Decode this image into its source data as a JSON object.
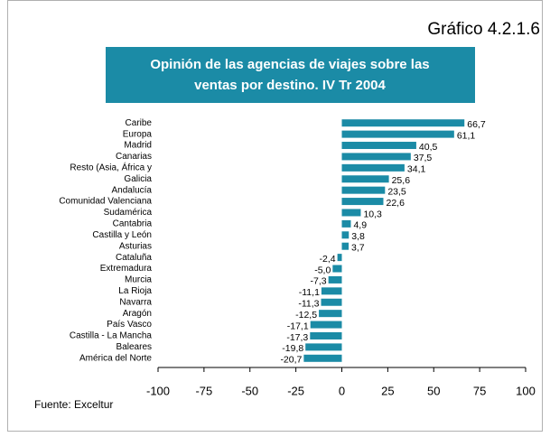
{
  "chart_data": {
    "type": "bar",
    "orientation": "horizontal",
    "figure_label": "Gráfico 4.2.1.6",
    "title": [
      "Opinión de las agencias de viajes sobre las",
      "ventas por destino.  IV Tr 2004"
    ],
    "source": "Fuente: Exceltur",
    "categories": [
      "Caribe",
      "Europa",
      "Madrid",
      "Canarias",
      "Resto (Asia, África y",
      "Galicia",
      "Andalucía",
      "Comunidad Valenciana",
      "Sudamérica",
      "Cantabria",
      "Castilla y León",
      "Asturias",
      "Cataluña",
      "Extremadura",
      "Murcia",
      "La Rioja",
      "Navarra",
      "Aragón",
      "País Vasco",
      "Castilla - La Mancha",
      "Baleares",
      "América del Norte"
    ],
    "values": [
      66.7,
      61.1,
      40.5,
      37.5,
      34.1,
      25.6,
      23.5,
      22.6,
      10.3,
      4.9,
      3.8,
      3.7,
      -2.4,
      -5.0,
      -7.3,
      -11.1,
      -11.3,
      -12.5,
      -17.1,
      -17.3,
      -19.8,
      -20.7
    ],
    "value_labels": [
      "66,7",
      "61,1",
      "40,5",
      "37,5",
      "34,1",
      "25,6",
      "23,5",
      "22,6",
      "10,3",
      "4,9",
      "3,8",
      "3,7",
      "-2,4",
      "-5,0",
      "-7,3",
      "-11,1",
      "-11,3",
      "-12,5",
      "-17,1",
      "-17,3",
      "-19,8",
      "-20,7"
    ],
    "color": "#1b8ba6",
    "xlim": [
      -100,
      100
    ],
    "xticks": [
      -100,
      -75,
      -50,
      -25,
      0,
      25,
      50,
      75,
      100
    ]
  }
}
